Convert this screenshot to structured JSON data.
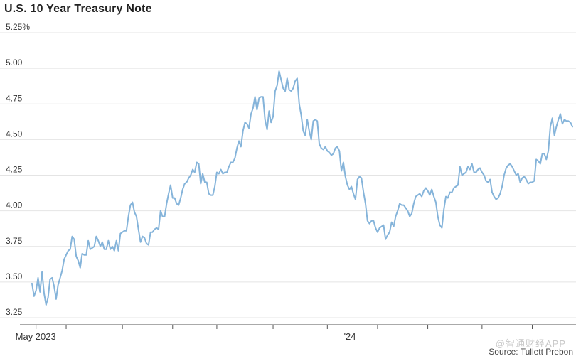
{
  "chart_data": {
    "type": "line",
    "title": "U.S. 10 Year Treasury Note",
    "source": "Source: Tullett Prebon",
    "watermark": "@智通财经APP",
    "ylim": [
      3.25,
      5.25
    ],
    "y_ticks": [
      "3.25",
      "3.50",
      "3.75",
      "4.00",
      "4.25",
      "4.50",
      "4.75",
      "5.00",
      "5.25%"
    ],
    "x_labels": [
      {
        "label": "May 2023",
        "index": 2
      },
      {
        "label": "'24",
        "index": 157
      }
    ],
    "x_tick_indices": [
      2,
      17,
      45,
      70,
      92,
      120,
      147,
      172,
      197,
      224,
      249,
      276,
      303
    ],
    "grid": true,
    "line_color": "#85b4da",
    "series": [
      {
        "values": [
          3.49,
          3.4,
          3.44,
          3.53,
          3.43,
          3.57,
          3.42,
          3.34,
          3.39,
          3.52,
          3.53,
          3.47,
          3.38,
          3.48,
          3.53,
          3.58,
          3.66,
          3.69,
          3.72,
          3.73,
          3.82,
          3.8,
          3.68,
          3.65,
          3.6,
          3.7,
          3.69,
          3.69,
          3.79,
          3.73,
          3.74,
          3.75,
          3.82,
          3.79,
          3.75,
          3.78,
          3.73,
          3.73,
          3.79,
          3.73,
          3.75,
          3.72,
          3.79,
          3.72,
          3.84,
          3.85,
          3.86,
          3.86,
          3.96,
          4.04,
          4.06,
          3.99,
          3.96,
          3.87,
          3.78,
          3.82,
          3.81,
          3.77,
          3.76,
          3.85,
          3.85,
          3.87,
          3.88,
          3.87,
          4.0,
          3.96,
          3.96,
          4.05,
          4.12,
          4.18,
          4.09,
          4.09,
          4.05,
          4.04,
          4.09,
          4.15,
          4.19,
          4.2,
          4.23,
          4.25,
          4.29,
          4.27,
          4.34,
          4.33,
          4.19,
          4.26,
          4.2,
          4.2,
          4.12,
          4.11,
          4.11,
          4.17,
          4.27,
          4.26,
          4.29,
          4.26,
          4.27,
          4.27,
          4.31,
          4.34,
          4.34,
          4.37,
          4.44,
          4.49,
          4.45,
          4.56,
          4.62,
          4.61,
          4.58,
          4.68,
          4.72,
          4.8,
          4.71,
          4.79,
          4.8,
          4.8,
          4.64,
          4.57,
          4.7,
          4.62,
          4.66,
          4.84,
          4.88,
          4.98,
          4.92,
          4.86,
          4.84,
          4.93,
          4.85,
          4.84,
          4.86,
          4.91,
          4.93,
          4.75,
          4.67,
          4.56,
          4.53,
          4.64,
          4.56,
          4.5,
          4.63,
          4.64,
          4.63,
          4.47,
          4.44,
          4.43,
          4.45,
          4.42,
          4.41,
          4.39,
          4.4,
          4.44,
          4.45,
          4.42,
          4.28,
          4.34,
          4.24,
          4.18,
          4.15,
          4.17,
          4.12,
          4.08,
          4.22,
          4.24,
          4.23,
          4.13,
          4.05,
          3.93,
          3.91,
          3.93,
          3.93,
          3.88,
          3.85,
          3.88,
          3.89,
          3.9,
          3.8,
          3.83,
          3.85,
          3.92,
          3.89,
          3.96,
          4.0,
          4.05,
          4.04,
          4.04,
          4.02,
          4.0,
          3.96,
          3.98,
          4.05,
          4.1,
          4.11,
          4.12,
          4.1,
          4.14,
          4.16,
          4.14,
          4.11,
          4.15,
          4.1,
          4.06,
          3.96,
          3.9,
          3.88,
          4.01,
          4.1,
          4.09,
          4.13,
          4.13,
          4.16,
          4.17,
          4.18,
          4.31,
          4.25,
          4.26,
          4.27,
          4.31,
          4.29,
          4.33,
          4.27,
          4.27,
          4.29,
          4.3,
          4.27,
          4.25,
          4.21,
          4.2,
          4.22,
          4.13,
          4.1,
          4.08,
          4.09,
          4.12,
          4.17,
          4.25,
          4.3,
          4.32,
          4.33,
          4.31,
          4.28,
          4.25,
          4.26,
          4.2,
          4.23,
          4.24,
          4.22,
          4.19,
          4.2,
          4.2,
          4.21,
          4.36,
          4.35,
          4.33,
          4.4,
          4.4,
          4.36,
          4.42,
          4.59,
          4.65,
          4.53,
          4.59,
          4.64,
          4.68,
          4.61,
          4.64,
          4.63,
          4.63,
          4.62,
          4.59
        ]
      }
    ]
  }
}
